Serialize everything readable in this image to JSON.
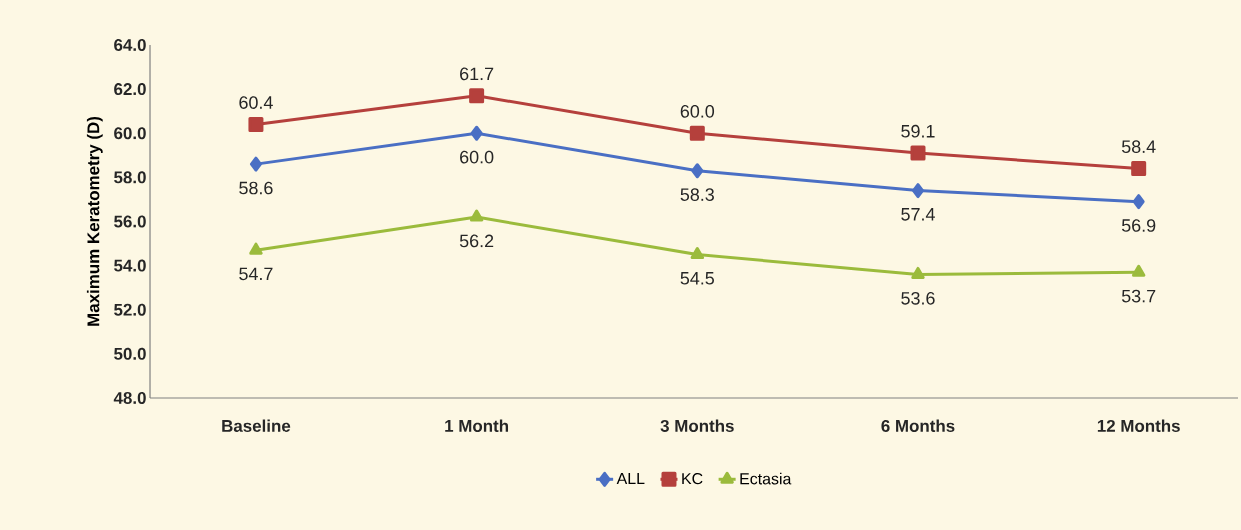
{
  "chart_data": {
    "type": "line",
    "ylabel": "Maximum Keratometry (D)",
    "categories": [
      "Baseline",
      "1 Month",
      "3 Months",
      "6 Months",
      "12 Months"
    ],
    "series": [
      {
        "name": "ALL",
        "color": "#4a6fc4",
        "marker": "diamond",
        "values": [
          58.6,
          60.0,
          58.3,
          57.4,
          56.9
        ],
        "value_labels": [
          "58.6",
          "60.0",
          "58.3",
          "57.4",
          "56.9"
        ]
      },
      {
        "name": "KC",
        "color": "#b5403c",
        "marker": "square",
        "values": [
          60.4,
          61.7,
          60.0,
          59.1,
          58.4
        ],
        "value_labels": [
          "60.4",
          "61.7",
          "60.0",
          "59.1",
          "58.4"
        ]
      },
      {
        "name": "Ectasia",
        "color": "#9bbb3c",
        "marker": "triangle",
        "values": [
          54.7,
          56.2,
          54.5,
          53.6,
          53.7
        ],
        "value_labels": [
          "54.7",
          "56.2",
          "54.5",
          "53.6",
          "53.7"
        ]
      }
    ],
    "ylim": [
      48,
      64
    ],
    "yticks": [
      {
        "value": 48,
        "label": "48.0"
      },
      {
        "value": 50,
        "label": "50.0"
      },
      {
        "value": 52,
        "label": "52.0"
      },
      {
        "value": 54,
        "label": "54.0"
      },
      {
        "value": 56,
        "label": "56.0"
      },
      {
        "value": 58,
        "label": "58.0"
      },
      {
        "value": 60,
        "label": "60.0"
      },
      {
        "value": 62,
        "label": "62.0"
      },
      {
        "value": 64,
        "label": "64.0"
      }
    ],
    "grid": false,
    "legend": "bottom",
    "line_style": "solid"
  }
}
